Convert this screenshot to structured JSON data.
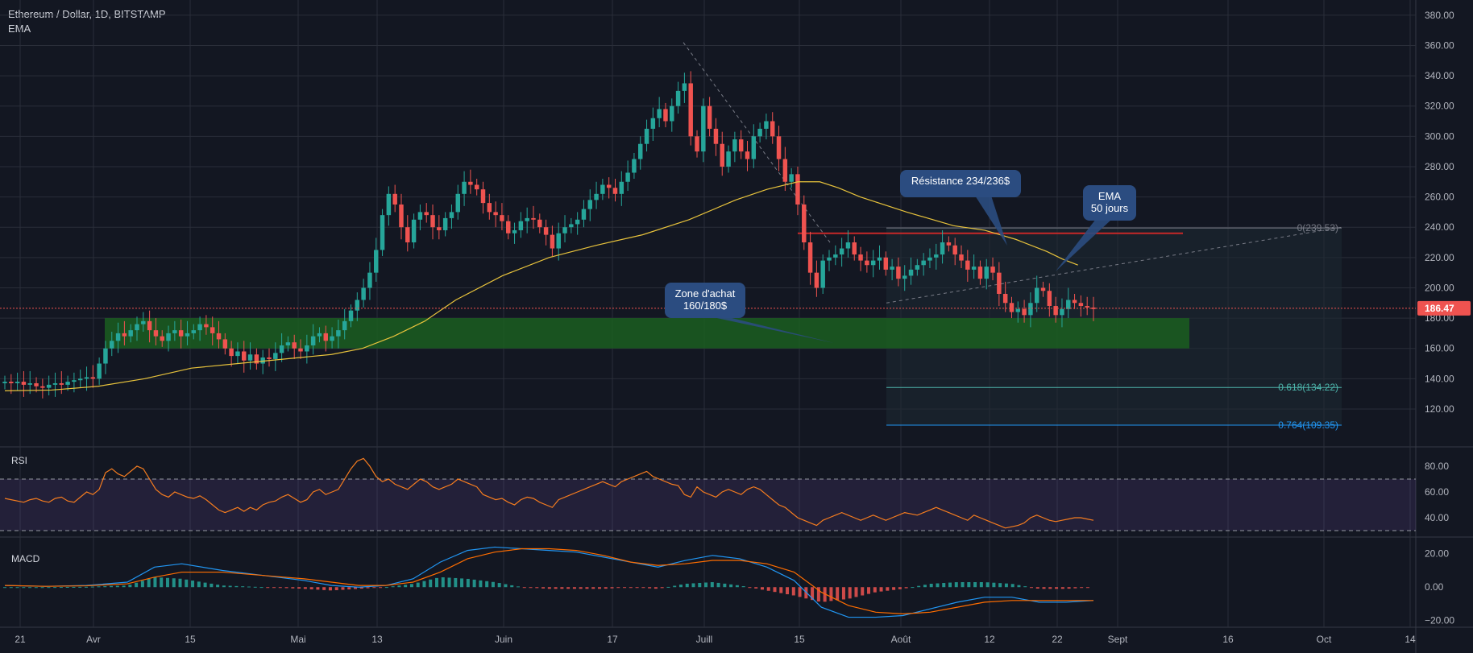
{
  "header": {
    "symbol": "Ethereum / Dollar, 1D, BITSTAMP",
    "ema_label": "EMA"
  },
  "colors": {
    "background": "#131722",
    "grid": "#2a2e39",
    "up": "#26a69a",
    "down": "#ef5350",
    "ema": "#e8c33c",
    "rsi": "#f57c1f",
    "rsi_band": "#7e57c2",
    "macd_line": "#2196f3",
    "signal_line": "#ff6d00",
    "buy_zone": "#1b5e20",
    "callout": "#2b4c80",
    "price_label": "#ef5350"
  },
  "chart_data": [
    {
      "type": "candlestick",
      "title": "Ethereum / Dollar, 1D, BITSTAMP",
      "ylim": [
        95,
        390
      ],
      "y_ticks": [
        "380.00",
        "360.00",
        "340.00",
        "320.00",
        "300.00",
        "280.00",
        "260.00",
        "240.00",
        "220.00",
        "200.00",
        "180.00",
        "160.00",
        "140.00",
        "120.00"
      ],
      "x_ticks": [
        "21",
        "Avr",
        "15",
        "Mai",
        "13",
        "Juin",
        "17",
        "Juill",
        "15",
        "Août",
        "12",
        "22",
        "Sept",
        "16",
        "Oct",
        "14"
      ],
      "last_price": "186.47",
      "series": [
        {
          "name": "EMA",
          "type": "line",
          "points": [
            [
              0,
              132
            ],
            [
              15,
              132.5
            ],
            [
              30,
              135
            ],
            [
              45,
              140
            ],
            [
              60,
              147
            ],
            [
              75,
              150
            ],
            [
              90,
              153
            ],
            [
              105,
              156
            ],
            [
              115,
              160
            ],
            [
              125,
              168
            ],
            [
              135,
              178
            ],
            [
              145,
              192
            ],
            [
              160,
              208
            ],
            [
              175,
              220
            ],
            [
              190,
              228
            ],
            [
              205,
              235
            ],
            [
              220,
              245
            ],
            [
              235,
              258
            ],
            [
              245,
              265
            ],
            [
              255,
              270
            ],
            [
              262,
              270
            ],
            [
              268,
              266
            ],
            [
              275,
              260
            ],
            [
              290,
              250
            ],
            [
              305,
              241
            ],
            [
              315,
              238
            ],
            [
              325,
              232
            ],
            [
              335,
              224
            ],
            [
              340,
              219
            ],
            [
              345,
              215
            ]
          ]
        }
      ],
      "candles_close": [
        138,
        137,
        138,
        136,
        137,
        135,
        134,
        136,
        137,
        136,
        138,
        139,
        140,
        141,
        140,
        150,
        160,
        165,
        170,
        168,
        172,
        176,
        178,
        172,
        168,
        165,
        170,
        172,
        168,
        170,
        172,
        176,
        174,
        170,
        166,
        160,
        155,
        158,
        152,
        156,
        150,
        154,
        153,
        157,
        162,
        164,
        160,
        158,
        162,
        168,
        170,
        165,
        168,
        172,
        178,
        185,
        192,
        200,
        210,
        225,
        248,
        262,
        255,
        240,
        230,
        245,
        250,
        248,
        240,
        238,
        246,
        250,
        262,
        270,
        268,
        265,
        256,
        250,
        248,
        244,
        236,
        238,
        244,
        246,
        245,
        240,
        235,
        226,
        236,
        240,
        242,
        245,
        252,
        258,
        262,
        268,
        266,
        262,
        270,
        276,
        285,
        295,
        305,
        312,
        318,
        310,
        320,
        330,
        335,
        300,
        290,
        320,
        305,
        295,
        280,
        290,
        298,
        290,
        285,
        300,
        305,
        310,
        300,
        285,
        270,
        275,
        255,
        230,
        210,
        200,
        218,
        220,
        222,
        226,
        230,
        222,
        218,
        215,
        218,
        220,
        212,
        214,
        206,
        208,
        212,
        215,
        218,
        220,
        222,
        230,
        228,
        222,
        218,
        212,
        214,
        206,
        214,
        210,
        196,
        190,
        184,
        186,
        182,
        190,
        200,
        198,
        188,
        182,
        186,
        192,
        190,
        188,
        187,
        186
      ],
      "annotations": [
        {
          "text": "Résistance 234/236$"
        },
        {
          "text": "EMA\n50 jours"
        },
        {
          "text": "Zone d'achat\n160/180$"
        }
      ],
      "fibonacci": [
        {
          "label": "0(239.53)",
          "level": 239.53
        },
        {
          "label": "0.618(134.22)",
          "level": 134.22
        },
        {
          "label": "0.764(109.35)",
          "level": 109.35
        }
      ],
      "resistance_level": 236,
      "buy_zone": [
        160,
        180
      ]
    },
    {
      "type": "line",
      "title": "RSI",
      "ylim": [
        25,
        95
      ],
      "y_ticks": [
        "80.00",
        "60.00",
        "40.00"
      ],
      "bands": [
        30,
        70
      ],
      "values": [
        55,
        54,
        53,
        52,
        54,
        55,
        53,
        52,
        55,
        56,
        53,
        52,
        56,
        60,
        58,
        62,
        75,
        78,
        74,
        72,
        76,
        80,
        78,
        70,
        62,
        58,
        56,
        60,
        58,
        56,
        55,
        57,
        54,
        50,
        46,
        44,
        46,
        48,
        45,
        48,
        46,
        50,
        52,
        53,
        56,
        58,
        55,
        52,
        54,
        60,
        62,
        58,
        60,
        62,
        70,
        78,
        84,
        86,
        80,
        72,
        68,
        70,
        66,
        64,
        62,
        66,
        70,
        68,
        64,
        62,
        64,
        66,
        70,
        68,
        66,
        64,
        58,
        56,
        54,
        55,
        52,
        50,
        54,
        56,
        55,
        52,
        50,
        48,
        54,
        56,
        58,
        60,
        62,
        64,
        66,
        68,
        66,
        64,
        68,
        70,
        72,
        74,
        76,
        72,
        70,
        68,
        66,
        65,
        58,
        56,
        64,
        60,
        58,
        56,
        60,
        62,
        60,
        58,
        62,
        64,
        62,
        58,
        54,
        50,
        48,
        44,
        40,
        38,
        36,
        34,
        38,
        40,
        42,
        44,
        42,
        40,
        38,
        40,
        42,
        40,
        38,
        40,
        42,
        44,
        43,
        42,
        44,
        46,
        48,
        46,
        44,
        42,
        40,
        38,
        42,
        40,
        38,
        36,
        34,
        32,
        33,
        34,
        36,
        40,
        42,
        40,
        38,
        37,
        38,
        39,
        40,
        40,
        39,
        38
      ]
    },
    {
      "type": "bar+line",
      "title": "MACD",
      "ylim": [
        -24,
        30
      ],
      "y_ticks": [
        "20.00",
        "0.00",
        "−20.00"
      ],
      "series": [
        {
          "name": "MACD",
          "points": [
            [
              0,
              1
            ],
            [
              15,
              0.5
            ],
            [
              30,
              1
            ],
            [
              45,
              3
            ],
            [
              55,
              12
            ],
            [
              65,
              14
            ],
            [
              80,
              10
            ],
            [
              95,
              7
            ],
            [
              110,
              4
            ],
            [
              120,
              1
            ],
            [
              130,
              0
            ],
            [
              140,
              1
            ],
            [
              150,
              5
            ],
            [
              160,
              15
            ],
            [
              170,
              22
            ],
            [
              180,
              24
            ],
            [
              190,
              23
            ],
            [
              200,
              22
            ],
            [
              210,
              21
            ],
            [
              220,
              18
            ],
            [
              230,
              15
            ],
            [
              240,
              12
            ],
            [
              250,
              16
            ],
            [
              260,
              19
            ],
            [
              270,
              17
            ],
            [
              280,
              12
            ],
            [
              290,
              4
            ],
            [
              300,
              -12
            ],
            [
              310,
              -18
            ],
            [
              320,
              -18
            ],
            [
              330,
              -17
            ],
            [
              340,
              -13
            ],
            [
              350,
              -9
            ],
            [
              360,
              -6
            ],
            [
              370,
              -6
            ],
            [
              380,
              -9
            ],
            [
              390,
              -9
            ],
            [
              400,
              -8
            ]
          ]
        },
        {
          "name": "Signal",
          "points": [
            [
              0,
              1
            ],
            [
              15,
              0.5
            ],
            [
              30,
              0.8
            ],
            [
              45,
              2
            ],
            [
              55,
              6
            ],
            [
              65,
              9
            ],
            [
              80,
              9
            ],
            [
              95,
              7
            ],
            [
              110,
              5
            ],
            [
              120,
              3
            ],
            [
              130,
              1
            ],
            [
              140,
              1
            ],
            [
              150,
              3
            ],
            [
              160,
              9
            ],
            [
              170,
              17
            ],
            [
              180,
              21
            ],
            [
              190,
              23
            ],
            [
              200,
              23
            ],
            [
              210,
              22
            ],
            [
              220,
              19
            ],
            [
              230,
              15
            ],
            [
              240,
              13
            ],
            [
              250,
              14
            ],
            [
              260,
              16
            ],
            [
              270,
              16
            ],
            [
              280,
              14
            ],
            [
              290,
              9
            ],
            [
              300,
              -3
            ],
            [
              310,
              -11
            ],
            [
              320,
              -15
            ],
            [
              330,
              -16
            ],
            [
              340,
              -15
            ],
            [
              350,
              -12
            ],
            [
              360,
              -9
            ],
            [
              370,
              -8
            ],
            [
              380,
              -8
            ],
            [
              390,
              -8
            ],
            [
              400,
              -8
            ]
          ]
        }
      ]
    }
  ]
}
